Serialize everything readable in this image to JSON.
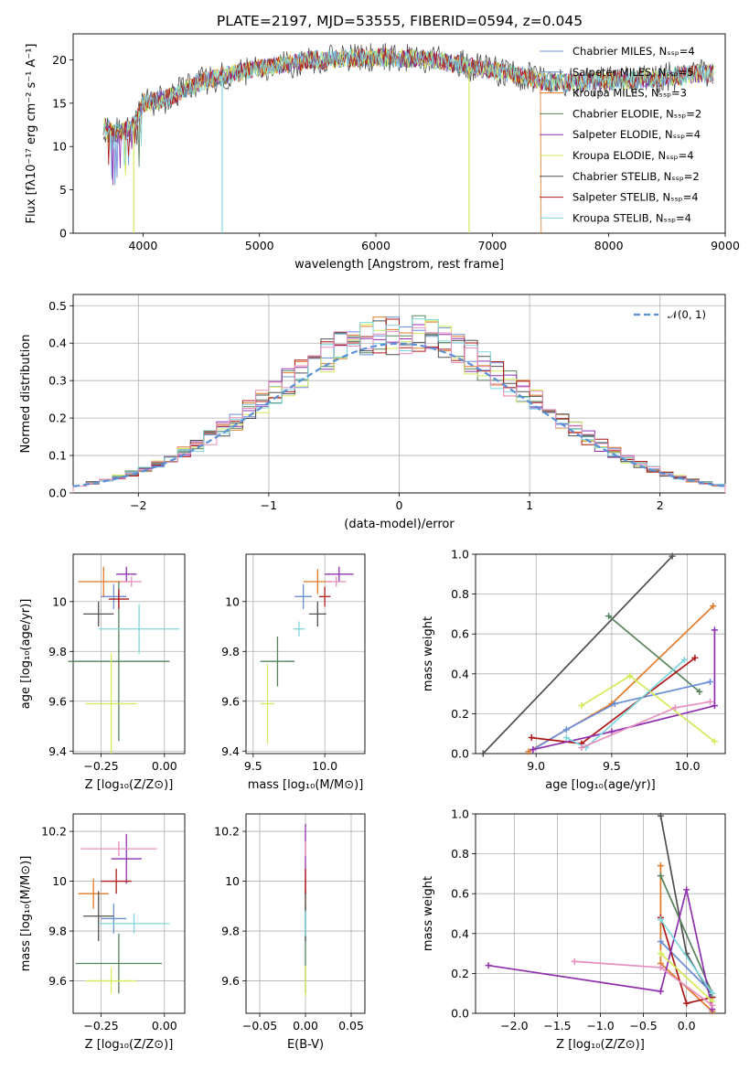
{
  "figure": {
    "title": "PLATE=2197, MJD=53555, FIBERID=0594, z=0.045"
  },
  "legend": {
    "entries": [
      {
        "label": "Chabrier MILES, Nₛₛₚ=4",
        "color": "#6a8fd8"
      },
      {
        "label": "Salpeter MILES, Nₛₛₚ=5",
        "color": "#6a8fd8"
      },
      {
        "label": "Kroupa MILES, Nₛₛₚ=3",
        "color": "#e07a2a"
      },
      {
        "label": "Chabrier ELODIE, Nₛₛₚ=2",
        "color": "#55825a"
      },
      {
        "label": "Salpeter ELODIE, Nₛₛₚ=4",
        "color": "#9030b0"
      },
      {
        "label": "Kroupa ELODIE, Nₛₛₚ=4",
        "color": "#d4ea5a"
      },
      {
        "label": "Chabrier STELIB, Nₛₛₚ=2",
        "color": "#505050"
      },
      {
        "label": "Salpeter STELIB, Nₛₛₚ=4",
        "color": "#b01818"
      },
      {
        "label": "Kroupa STELIB, Nₛₛₚ=4",
        "color": "#7fd6de"
      }
    ],
    "normal_label": "𝒩(0, 1)"
  },
  "chart_data": [
    {
      "id": "spectrum",
      "type": "line",
      "xlabel": "wavelength [Angstrom, rest frame]",
      "ylabel": "Flux [fλ10⁻¹⁷ erg cm⁻² s⁻¹ A⁻¹]",
      "xlim": [
        3400,
        9000
      ],
      "ylim": [
        0,
        23
      ],
      "xticks": [
        4000,
        5000,
        6000,
        7000,
        8000,
        9000
      ],
      "yticks": [
        0,
        5,
        10,
        15,
        20
      ],
      "grid": false,
      "legend_position": "upper right",
      "continuum": [
        [
          3650,
          12.5
        ],
        [
          3750,
          11.5
        ],
        [
          3900,
          12.0
        ],
        [
          4000,
          15.0
        ],
        [
          4200,
          15.5
        ],
        [
          4500,
          17.5
        ],
        [
          4800,
          18.5
        ],
        [
          5000,
          19.0
        ],
        [
          5200,
          19.5
        ],
        [
          5500,
          20.0
        ],
        [
          6000,
          20.3
        ],
        [
          6500,
          20.0
        ],
        [
          7000,
          18.8
        ],
        [
          7300,
          18.0
        ],
        [
          7500,
          17.3
        ],
        [
          8000,
          17.5
        ],
        [
          8500,
          18.0
        ],
        [
          8900,
          18.5
        ]
      ],
      "salpeter_miles_end": 7420
    },
    {
      "id": "residual_hist",
      "type": "histogram",
      "xlabel": "(data-model)/error",
      "ylabel": "Normed distribution",
      "xlim": [
        -2.5,
        2.5
      ],
      "ylim": [
        0,
        0.53
      ],
      "xticks": [
        -2,
        -1,
        0,
        1,
        2
      ],
      "yticks": [
        0.0,
        0.1,
        0.2,
        0.3,
        0.4,
        0.5
      ],
      "grid": true,
      "bin_width": 0.1,
      "normal": {
        "mean": 0,
        "sigma": 1
      }
    },
    {
      "id": "age_vs_Z",
      "type": "errorbar",
      "xlabel": "Z [log₁₀(Z/Z⊙)]",
      "ylabel": "age  [log₁₀(age/yr)]",
      "xlim": [
        -0.36,
        0.08
      ],
      "ylim": [
        9.39,
        10.19
      ],
      "xticks": [
        -0.25,
        0.0
      ],
      "xticklabels": [
        "−0.25",
        "0.00"
      ],
      "yticks": [
        9.4,
        9.6,
        9.8,
        10.0
      ],
      "points": [
        {
          "c": 0,
          "x": -0.2,
          "y": 10.02,
          "xe": 0.05,
          "ye": 0.05
        },
        {
          "c": 2,
          "x": -0.24,
          "y": 10.08,
          "xe": 0.1,
          "ye": 0.06
        },
        {
          "c": 3,
          "x": -0.18,
          "y": 9.76,
          "xe": 0.2,
          "ye": 0.32
        },
        {
          "c": 4,
          "x": -0.15,
          "y": 10.11,
          "xe": 0.04,
          "ye": 0.03
        },
        {
          "c": 5,
          "x": -0.21,
          "y": 9.59,
          "xe": 0.1,
          "ye": 0.2
        },
        {
          "c": 6,
          "x": -0.26,
          "y": 9.95,
          "xe": 0.06,
          "ye": 0.05
        },
        {
          "c": 7,
          "x": -0.18,
          "y": 10.01,
          "xe": 0.04,
          "ye": 0.04
        },
        {
          "c": 8,
          "x": -0.1,
          "y": 9.89,
          "xe": 0.16,
          "ye": 0.1
        },
        {
          "c": 9,
          "x": -0.13,
          "y": 10.08,
          "xe": 0.04,
          "ye": 0.02
        }
      ]
    },
    {
      "id": "age_vs_mass",
      "type": "errorbar",
      "xlabel": "mass [log₁₀(M/M⊙)]",
      "ylabel": "",
      "xlim": [
        9.45,
        10.28
      ],
      "ylim": [
        9.39,
        10.19
      ],
      "xticks": [
        9.5,
        10.0
      ],
      "xticklabels": [
        "9.5",
        "10.0"
      ],
      "yticks": [
        9.4,
        9.6,
        9.8,
        10.0
      ],
      "points": [
        {
          "c": 0,
          "x": 9.85,
          "y": 10.02,
          "xe": 0.06,
          "ye": 0.05
        },
        {
          "c": 2,
          "x": 9.95,
          "y": 10.08,
          "xe": 0.1,
          "ye": 0.05
        },
        {
          "c": 3,
          "x": 9.67,
          "y": 9.76,
          "xe": 0.12,
          "ye": 0.1
        },
        {
          "c": 4,
          "x": 10.1,
          "y": 10.11,
          "xe": 0.1,
          "ye": 0.03
        },
        {
          "c": 5,
          "x": 9.6,
          "y": 9.59,
          "xe": 0.05,
          "ye": 0.16
        },
        {
          "c": 6,
          "x": 9.95,
          "y": 9.95,
          "xe": 0.06,
          "ye": 0.05
        },
        {
          "c": 7,
          "x": 10.0,
          "y": 10.02,
          "xe": 0.04,
          "ye": 0.04
        },
        {
          "c": 8,
          "x": 9.82,
          "y": 9.89,
          "xe": 0.04,
          "ye": 0.03
        },
        {
          "c": 9,
          "x": 10.08,
          "y": 10.08,
          "xe": 0.07,
          "ye": 0.02
        }
      ]
    },
    {
      "id": "weight_vs_age",
      "type": "line",
      "xlabel": "age  [log₁₀(age/yr)]",
      "ylabel": "mass weight",
      "xlim": [
        8.6,
        10.25
      ],
      "ylim": [
        0,
        1
      ],
      "xticks": [
        9.0,
        9.5,
        10.0
      ],
      "xticklabels": [
        "9.0",
        "9.5",
        "10.0"
      ],
      "yticks": [
        0.0,
        0.2,
        0.4,
        0.6,
        0.8,
        1.0
      ],
      "series": [
        {
          "c": 6,
          "pts": [
            [
              8.65,
              0.0
            ],
            [
              9.9,
              0.99
            ]
          ]
        },
        {
          "c": 2,
          "pts": [
            [
              8.95,
              0.01
            ],
            [
              9.5,
              0.25
            ],
            [
              10.17,
              0.74
            ]
          ]
        },
        {
          "c": 3,
          "pts": [
            [
              9.48,
              0.69
            ],
            [
              10.08,
              0.31
            ]
          ]
        },
        {
          "c": 0,
          "pts": [
            [
              8.98,
              0.02
            ],
            [
              9.2,
              0.12
            ],
            [
              9.52,
              0.25
            ],
            [
              10.15,
              0.36
            ]
          ]
        },
        {
          "c": 7,
          "pts": [
            [
              8.97,
              0.08
            ],
            [
              9.3,
              0.05
            ],
            [
              10.05,
              0.48
            ]
          ]
        },
        {
          "c": 4,
          "pts": [
            [
              8.98,
              0.02
            ],
            [
              9.5,
              0.11
            ],
            [
              10.18,
              0.24
            ],
            [
              10.18,
              0.62
            ]
          ]
        },
        {
          "c": 5,
          "pts": [
            [
              9.3,
              0.24
            ],
            [
              9.62,
              0.39
            ],
            [
              10.18,
              0.06
            ]
          ]
        },
        {
          "c": 8,
          "pts": [
            [
              9.2,
              0.08
            ],
            [
              9.33,
              0.03
            ],
            [
              9.98,
              0.47
            ]
          ]
        },
        {
          "c": 9,
          "pts": [
            [
              9.3,
              0.03
            ],
            [
              9.92,
              0.23
            ],
            [
              10.15,
              0.26
            ]
          ]
        }
      ]
    },
    {
      "id": "mass_vs_Z",
      "type": "errorbar",
      "xlabel": "Z [log₁₀(Z/Z⊙)]",
      "ylabel": "mass [log₁₀(M/M⊙)]",
      "xlim": [
        -0.36,
        0.08
      ],
      "ylim": [
        9.47,
        10.27
      ],
      "xticks": [
        -0.25,
        0.0
      ],
      "xticklabels": [
        "−0.25",
        "0.00"
      ],
      "yticks": [
        9.6,
        9.8,
        10.0,
        10.2
      ],
      "points": [
        {
          "c": 0,
          "x": -0.2,
          "y": 9.85,
          "xe": 0.05,
          "ye": 0.06
        },
        {
          "c": 2,
          "x": -0.28,
          "y": 9.95,
          "xe": 0.06,
          "ye": 0.06
        },
        {
          "c": 3,
          "x": -0.18,
          "y": 9.67,
          "xe": 0.17,
          "ye": 0.12
        },
        {
          "c": 4,
          "x": -0.15,
          "y": 10.09,
          "xe": 0.06,
          "ye": 0.1
        },
        {
          "c": 5,
          "x": -0.21,
          "y": 9.6,
          "xe": 0.1,
          "ye": 0.05
        },
        {
          "c": 6,
          "x": -0.26,
          "y": 9.86,
          "xe": 0.06,
          "ye": 0.1
        },
        {
          "c": 7,
          "x": -0.19,
          "y": 10.0,
          "xe": 0.06,
          "ye": 0.05
        },
        {
          "c": 8,
          "x": -0.12,
          "y": 9.83,
          "xe": 0.14,
          "ye": 0.04
        },
        {
          "c": 9,
          "x": -0.18,
          "y": 10.13,
          "xe": 0.15,
          "ye": 0.03
        }
      ]
    },
    {
      "id": "mass_vs_ebv",
      "type": "errorbar",
      "xlabel": "E(B-V)",
      "ylabel": "",
      "xlim": [
        -0.065,
        0.065
      ],
      "ylim": [
        9.47,
        10.27
      ],
      "xticks": [
        -0.05,
        0.0,
        0.05
      ],
      "xticklabels": [
        "−0.05",
        "0.00",
        "0.05"
      ],
      "yticks": [
        9.6,
        9.8,
        10.0,
        10.2
      ],
      "points": [
        {
          "c": 0,
          "x": 0,
          "y": 9.85,
          "xe": 0,
          "ye": 0.06
        },
        {
          "c": 2,
          "x": 0,
          "y": 9.95,
          "xe": 0,
          "ye": 0.06
        },
        {
          "c": 3,
          "x": 0,
          "y": 9.67,
          "xe": 0,
          "ye": 0.12
        },
        {
          "c": 4,
          "x": 0,
          "y": 10.09,
          "xe": 0,
          "ye": 0.14
        },
        {
          "c": 5,
          "x": 0,
          "y": 9.6,
          "xe": 0,
          "ye": 0.06
        },
        {
          "c": 6,
          "x": 0,
          "y": 9.86,
          "xe": 0,
          "ye": 0.1
        },
        {
          "c": 7,
          "x": 0,
          "y": 10.0,
          "xe": 0,
          "ye": 0.05
        },
        {
          "c": 8,
          "x": 0,
          "y": 9.83,
          "xe": 0,
          "ye": 0.05
        },
        {
          "c": 9,
          "x": 0,
          "y": 10.13,
          "xe": 0,
          "ye": 0.03
        }
      ]
    },
    {
      "id": "weight_vs_Z",
      "type": "line",
      "xlabel": "Z [log₁₀(Z/Z⊙)]",
      "ylabel": "mass weight",
      "xlim": [
        -2.45,
        0.45
      ],
      "ylim": [
        0,
        1
      ],
      "xticks": [
        -2.0,
        -1.5,
        -1.0,
        -0.5,
        0.0
      ],
      "xticklabels": [
        "−2.0",
        "−1.5",
        "−1.0",
        "−0.5",
        "0.0"
      ],
      "yticks": [
        0.0,
        0.2,
        0.4,
        0.6,
        0.8,
        1.0
      ],
      "series": [
        {
          "c": 6,
          "pts": [
            [
              -0.3,
              0.99
            ],
            [
              0.0,
              0.3
            ],
            [
              0.3,
              0.08
            ]
          ]
        },
        {
          "c": 2,
          "pts": [
            [
              -0.3,
              0.74
            ],
            [
              -0.3,
              0.25
            ],
            [
              0.3,
              0.01
            ]
          ]
        },
        {
          "c": 3,
          "pts": [
            [
              -0.3,
              0.69
            ],
            [
              0.3,
              0.1
            ]
          ]
        },
        {
          "c": 0,
          "pts": [
            [
              -0.3,
              0.36
            ],
            [
              0.3,
              0.1
            ]
          ]
        },
        {
          "c": 7,
          "pts": [
            [
              -0.3,
              0.48
            ],
            [
              0.0,
              0.05
            ],
            [
              0.3,
              0.08
            ]
          ]
        },
        {
          "c": 4,
          "pts": [
            [
              -2.3,
              0.24
            ],
            [
              -0.3,
              0.11
            ],
            [
              0.0,
              0.62
            ],
            [
              0.3,
              0.02
            ]
          ]
        },
        {
          "c": 5,
          "pts": [
            [
              -0.3,
              0.3
            ],
            [
              0.3,
              0.06
            ]
          ]
        },
        {
          "c": 8,
          "pts": [
            [
              -0.3,
              0.47
            ],
            [
              0.3,
              0.1
            ]
          ]
        },
        {
          "c": 9,
          "pts": [
            [
              -1.3,
              0.26
            ],
            [
              -0.3,
              0.23
            ],
            [
              0.3,
              0.04
            ]
          ]
        }
      ]
    }
  ]
}
